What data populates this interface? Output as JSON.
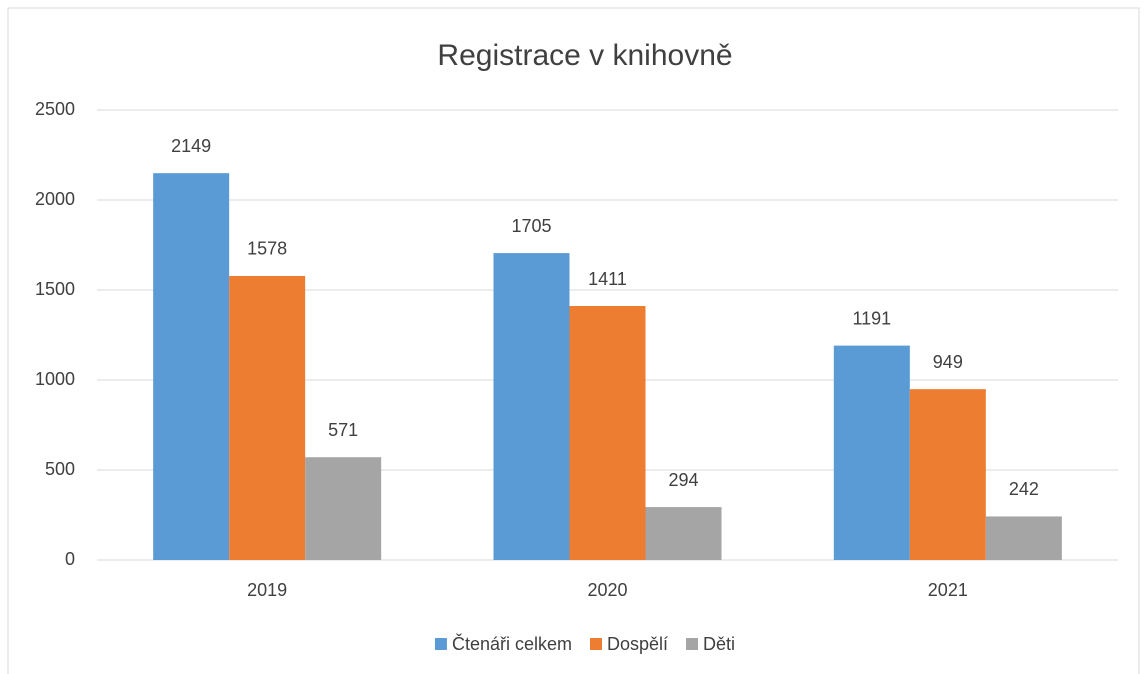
{
  "chart_data": {
    "type": "bar",
    "title": "Registrace v knihovně",
    "categories": [
      "2019",
      "2020",
      "2021"
    ],
    "series": [
      {
        "name": "Čtenáři celkem",
        "color": "#5b9bd5",
        "values": [
          2149,
          1705,
          1191
        ]
      },
      {
        "name": "Dospělí",
        "color": "#ed7d31",
        "values": [
          1578,
          1411,
          949
        ]
      },
      {
        "name": "Děti",
        "color": "#a5a5a5",
        "values": [
          571,
          294,
          242
        ]
      }
    ],
    "ylim": [
      0,
      2500
    ],
    "yticks": [
      0,
      500,
      1000,
      1500,
      2000,
      2500
    ],
    "grid": true,
    "legend": "bottom"
  }
}
